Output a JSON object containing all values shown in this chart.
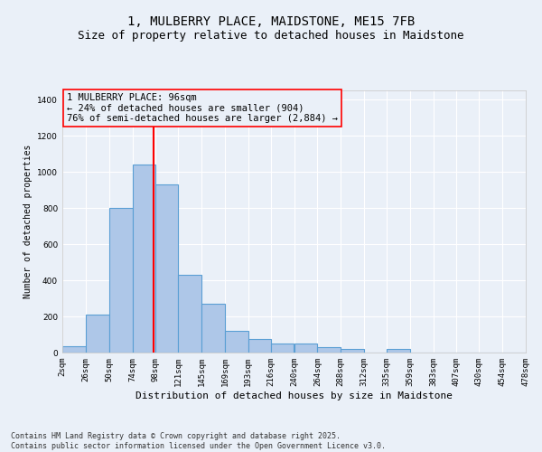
{
  "title_line1": "1, MULBERRY PLACE, MAIDSTONE, ME15 7FB",
  "title_line2": "Size of property relative to detached houses in Maidstone",
  "xlabel": "Distribution of detached houses by size in Maidstone",
  "ylabel": "Number of detached properties",
  "footnote": "Contains HM Land Registry data © Crown copyright and database right 2025.\nContains public sector information licensed under the Open Government Licence v3.0.",
  "bar_left_edges": [
    2,
    26,
    50,
    74,
    98,
    121,
    145,
    169,
    193,
    216,
    240,
    264,
    288,
    312,
    335,
    359,
    383,
    407,
    430,
    454
  ],
  "bar_widths": [
    24,
    24,
    24,
    24,
    23,
    24,
    24,
    24,
    23,
    24,
    24,
    24,
    24,
    23,
    24,
    24,
    24,
    23,
    24,
    24
  ],
  "bar_heights": [
    35,
    210,
    800,
    1040,
    930,
    430,
    270,
    120,
    75,
    50,
    50,
    30,
    20,
    0,
    20,
    0,
    0,
    0,
    0,
    0
  ],
  "bar_color": "#aec7e8",
  "bar_edgecolor": "#5a9fd4",
  "bar_linewidth": 0.8,
  "ylim": [
    0,
    1450
  ],
  "yticks": [
    0,
    200,
    400,
    600,
    800,
    1000,
    1200,
    1400
  ],
  "xlim": [
    2,
    478
  ],
  "xtick_labels": [
    "2sqm",
    "26sqm",
    "50sqm",
    "74sqm",
    "98sqm",
    "121sqm",
    "145sqm",
    "169sqm",
    "193sqm",
    "216sqm",
    "240sqm",
    "264sqm",
    "288sqm",
    "312sqm",
    "335sqm",
    "359sqm",
    "383sqm",
    "407sqm",
    "430sqm",
    "454sqm",
    "478sqm"
  ],
  "xtick_positions": [
    2,
    26,
    50,
    74,
    98,
    121,
    145,
    169,
    193,
    216,
    240,
    264,
    288,
    312,
    335,
    359,
    383,
    407,
    430,
    454,
    478
  ],
  "red_line_x": 96,
  "annotation_text": "1 MULBERRY PLACE: 96sqm\n← 24% of detached houses are smaller (904)\n76% of semi-detached houses are larger (2,884) →",
  "bg_color": "#eaf0f8",
  "grid_color": "#ffffff",
  "title_fontsize": 10,
  "subtitle_fontsize": 9,
  "tick_fontsize": 6.5,
  "ylabel_fontsize": 7,
  "xlabel_fontsize": 8,
  "annotation_fontsize": 7.5,
  "footnote_fontsize": 6
}
